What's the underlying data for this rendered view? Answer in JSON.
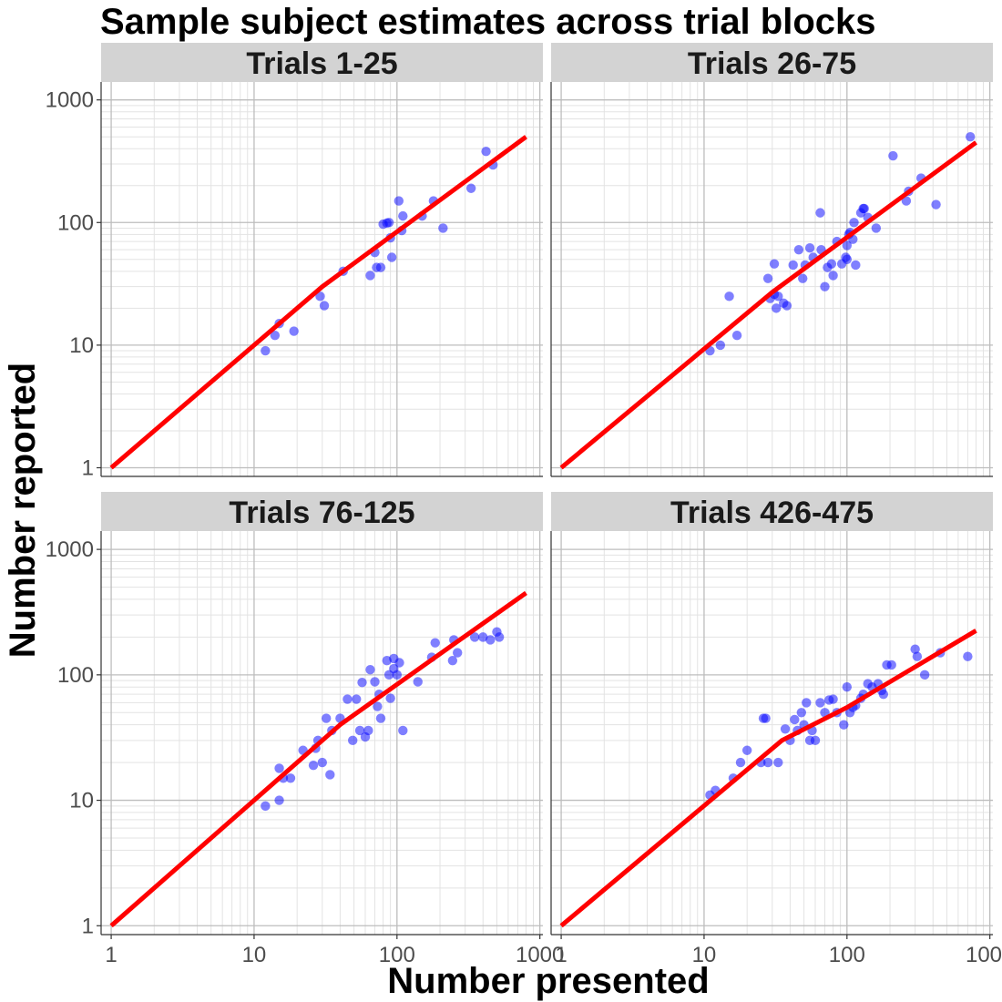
{
  "chart_data": {
    "type": "scatter",
    "title": "Sample subject estimates across trial blocks",
    "xlabel": "Number presented",
    "ylabel": "Number reported",
    "x_scale": "log10",
    "y_scale": "log10",
    "xlim": [
      0.85,
      1050
    ],
    "ylim": [
      0.85,
      1400
    ],
    "x_ticks": [
      1,
      10,
      100,
      1000
    ],
    "y_ticks": [
      1,
      10,
      100,
      1000
    ],
    "x_tick_labels": [
      "1",
      "10",
      "100",
      "1000"
    ],
    "y_tick_labels": [
      "1",
      "10",
      "100",
      "1000"
    ],
    "grid": true,
    "point_color": "#0000ff",
    "line_color": "#ff0000",
    "strip_color": "#d3d3d3",
    "panels": [
      {
        "label": "Trials 1-25",
        "fit_line": [
          [
            1,
            1
          ],
          [
            30,
            30
          ],
          [
            800,
            500
          ]
        ],
        "points": [
          [
            12,
            9
          ],
          [
            14,
            12
          ],
          [
            15,
            15
          ],
          [
            19,
            13
          ],
          [
            29,
            25
          ],
          [
            31,
            21
          ],
          [
            42,
            40
          ],
          [
            65,
            37
          ],
          [
            70,
            57
          ],
          [
            72,
            43
          ],
          [
            77,
            43
          ],
          [
            80,
            97
          ],
          [
            85,
            99
          ],
          [
            88,
            100
          ],
          [
            90,
            75
          ],
          [
            92,
            52
          ],
          [
            103,
            150
          ],
          [
            110,
            113
          ],
          [
            108,
            86
          ],
          [
            150,
            113
          ],
          [
            180,
            150
          ],
          [
            210,
            90
          ],
          [
            330,
            190
          ],
          [
            420,
            380
          ],
          [
            470,
            295
          ]
        ]
      },
      {
        "label": "Trials 26-75",
        "fit_line": [
          [
            1,
            1
          ],
          [
            30,
            27
          ],
          [
            800,
            450
          ]
        ],
        "points": [
          [
            11,
            9
          ],
          [
            13,
            10
          ],
          [
            15,
            25
          ],
          [
            17,
            12
          ],
          [
            28,
            35
          ],
          [
            29,
            24
          ],
          [
            31,
            46
          ],
          [
            31,
            26
          ],
          [
            32,
            20
          ],
          [
            33,
            25
          ],
          [
            36,
            22
          ],
          [
            38,
            21
          ],
          [
            42,
            45
          ],
          [
            46,
            60
          ],
          [
            49,
            35
          ],
          [
            51,
            45
          ],
          [
            55,
            62
          ],
          [
            58,
            52
          ],
          [
            65,
            120
          ],
          [
            66,
            60
          ],
          [
            70,
            30
          ],
          [
            73,
            43
          ],
          [
            78,
            46
          ],
          [
            80,
            37
          ],
          [
            85,
            70
          ],
          [
            92,
            46
          ],
          [
            98,
            52
          ],
          [
            103,
            80
          ],
          [
            100,
            50
          ],
          [
            100,
            65
          ],
          [
            105,
            83
          ],
          [
            110,
            73
          ],
          [
            112,
            100
          ],
          [
            115,
            45
          ],
          [
            125,
            120
          ],
          [
            130,
            130
          ],
          [
            132,
            130
          ],
          [
            140,
            110
          ],
          [
            160,
            90
          ],
          [
            210,
            350
          ],
          [
            260,
            150
          ],
          [
            270,
            180
          ],
          [
            330,
            230
          ],
          [
            420,
            140
          ],
          [
            730,
            500
          ]
        ]
      },
      {
        "label": "Trials 76-125",
        "fit_line": [
          [
            1,
            1
          ],
          [
            40,
            40
          ],
          [
            800,
            450
          ]
        ],
        "points": [
          [
            12,
            9
          ],
          [
            15,
            18
          ],
          [
            15,
            10
          ],
          [
            16,
            15
          ],
          [
            18,
            15
          ],
          [
            22,
            25
          ],
          [
            26,
            19
          ],
          [
            27,
            26
          ],
          [
            28,
            30
          ],
          [
            30,
            20
          ],
          [
            32,
            45
          ],
          [
            34,
            16
          ],
          [
            35,
            36
          ],
          [
            40,
            45
          ],
          [
            45,
            64
          ],
          [
            49,
            30
          ],
          [
            52,
            64
          ],
          [
            55,
            36
          ],
          [
            57,
            87
          ],
          [
            60,
            32
          ],
          [
            63,
            36
          ],
          [
            65,
            110
          ],
          [
            70,
            88
          ],
          [
            73,
            56
          ],
          [
            75,
            70
          ],
          [
            77,
            45
          ],
          [
            85,
            130
          ],
          [
            88,
            100
          ],
          [
            90,
            65
          ],
          [
            95,
            135
          ],
          [
            95,
            112
          ],
          [
            100,
            100
          ],
          [
            104,
            125
          ],
          [
            110,
            36
          ],
          [
            140,
            88
          ],
          [
            175,
            138
          ],
          [
            185,
            180
          ],
          [
            245,
            130
          ],
          [
            250,
            190
          ],
          [
            265,
            150
          ],
          [
            350,
            200
          ],
          [
            400,
            200
          ],
          [
            450,
            190
          ],
          [
            500,
            220
          ],
          [
            520,
            200
          ]
        ]
      },
      {
        "label": "Trials 426-475",
        "fit_line": [
          [
            1,
            1
          ],
          [
            35,
            30
          ],
          [
            100,
            55
          ],
          [
            800,
            225
          ]
        ],
        "points": [
          [
            11,
            11
          ],
          [
            12,
            12
          ],
          [
            16,
            15
          ],
          [
            18,
            20
          ],
          [
            20,
            25
          ],
          [
            25,
            20
          ],
          [
            26,
            45
          ],
          [
            27,
            45
          ],
          [
            28,
            20
          ],
          [
            33,
            20
          ],
          [
            37,
            37
          ],
          [
            40,
            30
          ],
          [
            43,
            44
          ],
          [
            45,
            36
          ],
          [
            48,
            50
          ],
          [
            50,
            40
          ],
          [
            52,
            60
          ],
          [
            55,
            30
          ],
          [
            57,
            36
          ],
          [
            60,
            30
          ],
          [
            65,
            60
          ],
          [
            70,
            50
          ],
          [
            75,
            63
          ],
          [
            80,
            64
          ],
          [
            85,
            50
          ],
          [
            95,
            40
          ],
          [
            100,
            80
          ],
          [
            105,
            50
          ],
          [
            110,
            55
          ],
          [
            115,
            57
          ],
          [
            125,
            65
          ],
          [
            130,
            70
          ],
          [
            140,
            85
          ],
          [
            150,
            80
          ],
          [
            165,
            85
          ],
          [
            175,
            75
          ],
          [
            180,
            70
          ],
          [
            190,
            120
          ],
          [
            205,
            120
          ],
          [
            300,
            160
          ],
          [
            310,
            140
          ],
          [
            350,
            100
          ],
          [
            450,
            150
          ],
          [
            700,
            140
          ]
        ]
      }
    ]
  }
}
